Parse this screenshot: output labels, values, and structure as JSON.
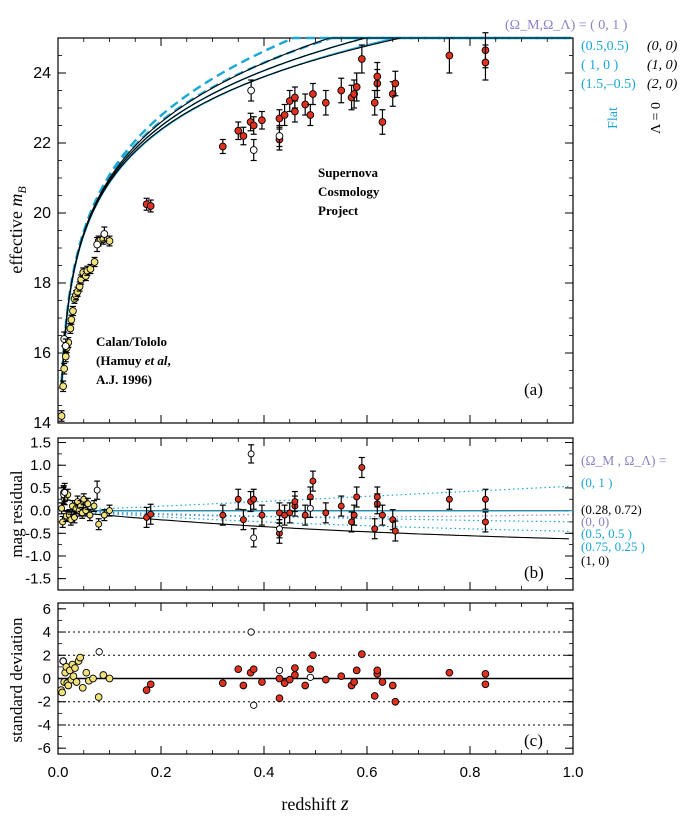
{
  "colors": {
    "cyan": "#1aa7d6",
    "lavender": "#8a82c8",
    "red": "#e0301e",
    "yellow": "#f2e27a",
    "black": "#000000"
  },
  "chart_data": {
    "type": "scatter",
    "x_axis": {
      "label_prefix": "redshift",
      "label_var": "z",
      "range": [
        0,
        1.0
      ],
      "ticks": [
        "0.0",
        "0.2",
        "0.4",
        "0.6",
        "0.8",
        "1.0"
      ]
    },
    "panel_a": {
      "tag": "(a)",
      "ylabel_prefix": "effective",
      "ylabel_var": "m",
      "ylabel_sub": "B",
      "ylim": [
        14,
        25
      ],
      "ticks": [
        "14",
        "16",
        "18",
        "20",
        "22",
        "24"
      ],
      "scp_label": [
        "Supernova",
        "Cosmology",
        "Project"
      ],
      "calan_label": [
        "Calan/Tololo",
        "(Hamuy ",
        "et al",
        ",",
        "A.J. 1996)"
      ],
      "legend_header": "(Ω_M,Ω_Λ) = ( 0,   1 )",
      "legend_cyan": [
        "(0.5,0.5)",
        "( 1,    0 )",
        "(1.5,–0.5)"
      ],
      "legend_black": [
        "(0, 0)",
        "(1, 0)",
        "(2, 0)"
      ],
      "flat_label": "Flat",
      "lambda_label": "Λ = 0",
      "models": [
        {
          "name": "(0,1)",
          "om": 0,
          "ol": 1,
          "style": "cyan-dash"
        },
        {
          "name": "(0.5,0.5)",
          "om": 0.5,
          "ol": 0.5,
          "style": "cyan-dash"
        },
        {
          "name": "(1,0) flat",
          "om": 1,
          "ol": 0,
          "style": "cyan-solid"
        },
        {
          "name": "(1.5,-0.5)",
          "om": 1.5,
          "ol": -0.5,
          "style": "cyan-solid"
        },
        {
          "name": "(0,0)",
          "om": 0,
          "ol": 0,
          "style": "black"
        },
        {
          "name": "(1,0)",
          "om": 1,
          "ol": 0,
          "style": "black"
        },
        {
          "name": "(2,0)",
          "om": 2,
          "ol": 0,
          "style": "black"
        }
      ]
    },
    "panel_b": {
      "tag": "(b)",
      "ylabel": "mag residual",
      "ylim": [
        -1.75,
        1.6
      ],
      "ticks": [
        "1.5",
        "1.0",
        "0.5",
        "0.0",
        "-0.5",
        "-1.0",
        "-1.5"
      ],
      "legend_header": "(Ω_M , Ω_Λ) =",
      "legend_rows": [
        {
          "text": "(0,      1 )",
          "color": "#1aa7d6"
        },
        {
          "text": "(0.28,  0.72)",
          "color": "#000000"
        },
        {
          "text": "(0,       0)",
          "color": "#8a82c8"
        },
        {
          "text": "(0.5,     0.5 )",
          "color": "#1aa7d6"
        },
        {
          "text": "(0.75,  0.25 )",
          "color": "#1aa7d6"
        },
        {
          "text": "(1,        0)",
          "color": "#000000"
        }
      ]
    },
    "panel_c": {
      "tag": "(c)",
      "ylabel": "standard deviation",
      "ylim": [
        -6.5,
        6.5
      ],
      "ticks": [
        "6",
        "4",
        "2",
        "0",
        "-2",
        "-4",
        "-6"
      ],
      "dotted_levels": [
        4,
        2,
        -2,
        -4
      ]
    },
    "low_z_points": [
      [
        0.007,
        14.2,
        0.15
      ],
      [
        0.01,
        15.05,
        0.15
      ],
      [
        0.012,
        15.55,
        0.15
      ],
      [
        0.015,
        15.9,
        0.15
      ],
      [
        0.017,
        16.15,
        0.14
      ],
      [
        0.02,
        16.3,
        0.14
      ],
      [
        0.024,
        16.7,
        0.14
      ],
      [
        0.026,
        16.95,
        0.13
      ],
      [
        0.029,
        17.2,
        0.13
      ],
      [
        0.032,
        17.55,
        0.13
      ],
      [
        0.035,
        17.65,
        0.13
      ],
      [
        0.038,
        17.75,
        0.13
      ],
      [
        0.042,
        17.9,
        0.13
      ],
      [
        0.045,
        18.1,
        0.13
      ],
      [
        0.049,
        18.3,
        0.13
      ],
      [
        0.054,
        18.2,
        0.13
      ],
      [
        0.057,
        18.35,
        0.13
      ],
      [
        0.063,
        18.4,
        0.13
      ],
      [
        0.071,
        18.6,
        0.13
      ],
      [
        0.079,
        19.2,
        0.14
      ],
      [
        0.088,
        19.25,
        0.14
      ],
      [
        0.1,
        19.2,
        0.14
      ]
    ],
    "high_z_points": [
      [
        0.172,
        20.25,
        0.17
      ],
      [
        0.18,
        20.2,
        0.17
      ],
      [
        0.32,
        21.9,
        0.2
      ],
      [
        0.35,
        22.35,
        0.25
      ],
      [
        0.36,
        22.2,
        0.25
      ],
      [
        0.374,
        22.6,
        0.25
      ],
      [
        0.38,
        22.5,
        0.25
      ],
      [
        0.396,
        22.65,
        0.25
      ],
      [
        0.43,
        22.7,
        0.25
      ],
      [
        0.43,
        22.1,
        0.3
      ],
      [
        0.44,
        22.8,
        0.3
      ],
      [
        0.45,
        23.2,
        0.3
      ],
      [
        0.46,
        22.9,
        0.3
      ],
      [
        0.46,
        23.3,
        0.3
      ],
      [
        0.48,
        23.1,
        0.3
      ],
      [
        0.49,
        22.8,
        0.3
      ],
      [
        0.495,
        23.4,
        0.3
      ],
      [
        0.52,
        23.15,
        0.35
      ],
      [
        0.55,
        23.5,
        0.35
      ],
      [
        0.57,
        23.3,
        0.35
      ],
      [
        0.575,
        23.4,
        0.4
      ],
      [
        0.58,
        23.6,
        0.4
      ],
      [
        0.59,
        24.4,
        0.4
      ],
      [
        0.615,
        23.15,
        0.35
      ],
      [
        0.62,
        23.7,
        0.4
      ],
      [
        0.62,
        23.9,
        0.4
      ],
      [
        0.63,
        22.6,
        0.35
      ],
      [
        0.65,
        23.4,
        0.35
      ],
      [
        0.655,
        23.7,
        0.35
      ],
      [
        0.76,
        24.5,
        0.5
      ],
      [
        0.83,
        24.65,
        0.5
      ],
      [
        0.83,
        24.3,
        0.5
      ]
    ],
    "open_points": [
      [
        0.012,
        16.4,
        0.2
      ],
      [
        0.015,
        16.2,
        0.2
      ],
      [
        0.076,
        19.1,
        0.2
      ],
      [
        0.09,
        19.4,
        0.2
      ],
      [
        0.375,
        23.5,
        0.3
      ],
      [
        0.38,
        21.8,
        0.3
      ],
      [
        0.43,
        22.2,
        0.3
      ]
    ],
    "residual_low": [
      [
        0.007,
        0.05
      ],
      [
        0.009,
        -0.25
      ],
      [
        0.011,
        0.4
      ],
      [
        0.013,
        0.25
      ],
      [
        0.016,
        -0.12
      ],
      [
        0.019,
        0.35
      ],
      [
        0.022,
        -0.1
      ],
      [
        0.025,
        -0.2
      ],
      [
        0.028,
        0.1
      ],
      [
        0.032,
        -0.15
      ],
      [
        0.035,
        0.05
      ],
      [
        0.038,
        0.2
      ],
      [
        0.041,
        0.0
      ],
      [
        0.044,
        0.1
      ],
      [
        0.047,
        -0.05
      ],
      [
        0.05,
        0.25
      ],
      [
        0.054,
        0.0
      ],
      [
        0.058,
        0.15
      ],
      [
        0.062,
        -0.1
      ],
      [
        0.07,
        0.1
      ],
      [
        0.079,
        -0.3
      ],
      [
        0.09,
        -0.1
      ],
      [
        0.1,
        0.0
      ]
    ],
    "residual_high": [
      [
        0.172,
        -0.15
      ],
      [
        0.18,
        -0.08
      ],
      [
        0.32,
        -0.1
      ],
      [
        0.35,
        0.25
      ],
      [
        0.36,
        -0.2
      ],
      [
        0.374,
        0.2
      ],
      [
        0.38,
        0.25
      ],
      [
        0.396,
        -0.1
      ],
      [
        0.43,
        -0.05
      ],
      [
        0.43,
        -0.5
      ],
      [
        0.44,
        -0.1
      ],
      [
        0.45,
        -0.05
      ],
      [
        0.46,
        0.1
      ],
      [
        0.46,
        0.2
      ],
      [
        0.48,
        -0.1
      ],
      [
        0.49,
        0.3
      ],
      [
        0.495,
        0.65
      ],
      [
        0.52,
        -0.05
      ],
      [
        0.55,
        0.1
      ],
      [
        0.57,
        -0.25
      ],
      [
        0.575,
        -0.1
      ],
      [
        0.58,
        0.3
      ],
      [
        0.59,
        0.95
      ],
      [
        0.615,
        -0.4
      ],
      [
        0.62,
        0.15
      ],
      [
        0.62,
        0.3
      ],
      [
        0.63,
        -0.1
      ],
      [
        0.65,
        -0.2
      ],
      [
        0.655,
        -0.45
      ],
      [
        0.76,
        0.25
      ],
      [
        0.83,
        0.25
      ],
      [
        0.83,
        -0.25
      ]
    ],
    "residual_open": [
      [
        0.011,
        0.35
      ],
      [
        0.013,
        0.4
      ],
      [
        0.076,
        0.45
      ],
      [
        0.375,
        1.25
      ],
      [
        0.38,
        -0.6
      ],
      [
        0.43,
        -0.4
      ],
      [
        0.49,
        0.05
      ]
    ],
    "sigma_low": [
      [
        0.006,
        -1.0
      ],
      [
        0.008,
        -1.2
      ],
      [
        0.01,
        1.5
      ],
      [
        0.012,
        -0.3
      ],
      [
        0.014,
        0.5
      ],
      [
        0.016,
        1.0
      ],
      [
        0.018,
        -0.4
      ],
      [
        0.02,
        -0.6
      ],
      [
        0.023,
        0.7
      ],
      [
        0.026,
        -0.1
      ],
      [
        0.028,
        1.2
      ],
      [
        0.03,
        0.2
      ],
      [
        0.033,
        0.9
      ],
      [
        0.036,
        -0.3
      ],
      [
        0.04,
        1.5
      ],
      [
        0.043,
        1.8
      ],
      [
        0.048,
        -0.8
      ],
      [
        0.055,
        0.5
      ],
      [
        0.06,
        -0.2
      ],
      [
        0.068,
        0.0
      ],
      [
        0.079,
        -1.6
      ],
      [
        0.088,
        0.3
      ],
      [
        0.1,
        0.0
      ]
    ],
    "sigma_high": [
      [
        0.172,
        -1.0
      ],
      [
        0.18,
        -0.5
      ],
      [
        0.32,
        -0.4
      ],
      [
        0.35,
        0.8
      ],
      [
        0.36,
        -0.6
      ],
      [
        0.374,
        0.5
      ],
      [
        0.38,
        0.8
      ],
      [
        0.396,
        -0.3
      ],
      [
        0.43,
        0.0
      ],
      [
        0.43,
        -1.7
      ],
      [
        0.44,
        -0.4
      ],
      [
        0.45,
        -0.1
      ],
      [
        0.46,
        0.3
      ],
      [
        0.46,
        0.9
      ],
      [
        0.48,
        -0.6
      ],
      [
        0.49,
        0.8
      ],
      [
        0.495,
        2.0
      ],
      [
        0.52,
        -0.1
      ],
      [
        0.55,
        0.2
      ],
      [
        0.57,
        -0.6
      ],
      [
        0.575,
        -0.3
      ],
      [
        0.58,
        0.7
      ],
      [
        0.59,
        2.1
      ],
      [
        0.615,
        -1.5
      ],
      [
        0.62,
        0.4
      ],
      [
        0.62,
        0.7
      ],
      [
        0.63,
        -0.3
      ],
      [
        0.65,
        -0.6
      ],
      [
        0.655,
        -2.0
      ],
      [
        0.76,
        0.5
      ],
      [
        0.83,
        0.4
      ],
      [
        0.83,
        -0.5
      ]
    ],
    "sigma_open": [
      [
        0.01,
        1.5
      ],
      [
        0.08,
        2.3
      ],
      [
        0.375,
        4.0
      ],
      [
        0.38,
        -2.3
      ],
      [
        0.43,
        0.7
      ],
      [
        0.49,
        0.1
      ]
    ]
  }
}
